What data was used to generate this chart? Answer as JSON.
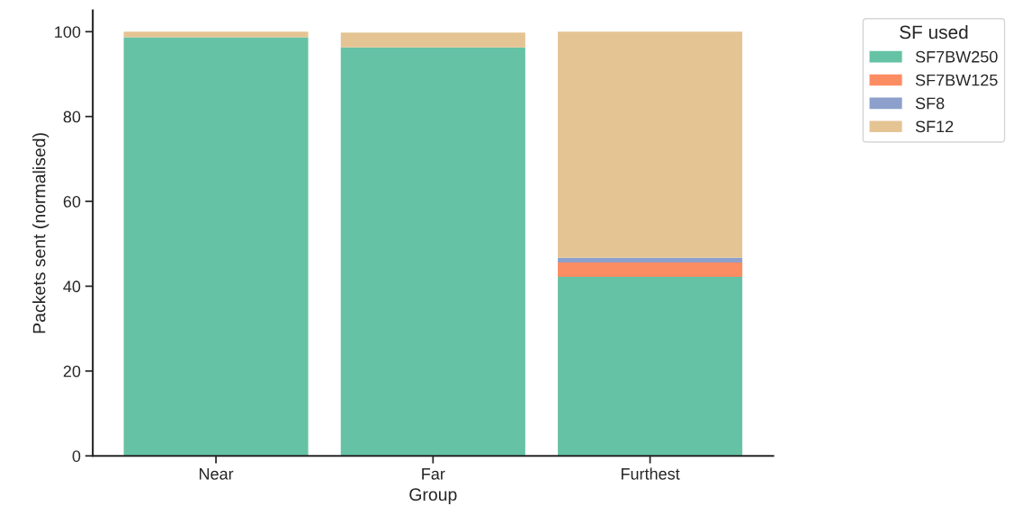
{
  "chart_data": {
    "type": "bar",
    "stacked": true,
    "xlabel": "Group",
    "ylabel": "Packets sent (normalised)",
    "legend_title": "SF used",
    "legend": "top right",
    "categories": [
      "Near",
      "Far",
      "Furthest"
    ],
    "series": [
      {
        "name": "SF7BW250",
        "color": "#66c2a5",
        "values": [
          98.7,
          96.3,
          42.2
        ]
      },
      {
        "name": "SF7BW125",
        "color": "#fc8d62",
        "values": [
          0,
          0,
          3.4
        ]
      },
      {
        "name": "SF8",
        "color": "#8da0cb",
        "values": [
          0,
          0,
          1.1
        ]
      },
      {
        "name": "SF12",
        "color": "#e5c494",
        "values": [
          1.3,
          3.5,
          53.3
        ]
      }
    ],
    "ylim": [
      0,
      105
    ],
    "yticks": [
      0,
      20,
      40,
      60,
      80,
      100
    ],
    "grid": false
  }
}
